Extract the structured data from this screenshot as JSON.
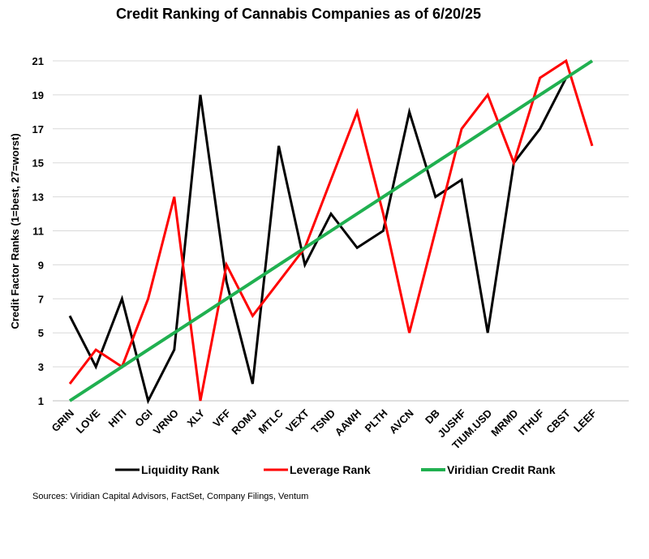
{
  "chart_data": {
    "type": "line",
    "title": "Credit Ranking of Cannabis Companies as of 6/20/25",
    "ylabel": "Credit Factor Ranks (1=best, 27=worst)",
    "xlabel": "",
    "ylim": [
      1,
      21
    ],
    "yticks": [
      1,
      3,
      5,
      7,
      9,
      11,
      13,
      15,
      17,
      19,
      21
    ],
    "grid": "horizontal",
    "legend_position": "bottom",
    "categories": [
      "GRIN",
      "LOVE",
      "HITI",
      "OGI",
      "VRNO",
      "XLY",
      "VFF",
      "ROMJ",
      "MTLC",
      "VEXT",
      "TSND",
      "AAWH",
      "PLTH",
      "AVCN",
      "DB",
      "JUSHF",
      "TIUM.USD",
      "MRMD",
      "ITHUF",
      "CBST",
      "LEEF"
    ],
    "series": [
      {
        "name": "Liquidity Rank",
        "color": "#000000",
        "values": [
          6,
          3,
          7,
          1,
          4,
          19,
          8,
          2,
          16,
          9,
          12,
          10,
          11,
          18,
          13,
          14,
          5,
          15,
          17,
          20,
          null
        ]
      },
      {
        "name": "Leverage Rank",
        "color": "#ff0000",
        "values": [
          2,
          4,
          3,
          7,
          13,
          1,
          9,
          6,
          8,
          10,
          14,
          18,
          12,
          5,
          11,
          17,
          19,
          15,
          20,
          21,
          16
        ]
      },
      {
        "name": "Viridian Credit Rank",
        "color": "#20b050",
        "values": [
          1,
          2,
          3,
          4,
          5,
          6,
          7,
          8,
          9,
          10,
          11,
          12,
          13,
          14,
          15,
          16,
          17,
          18,
          19,
          20,
          21
        ]
      }
    ]
  },
  "footer": {
    "source": "Sources: Viridian Capital Advisors, FactSet, Company Filings, Ventum"
  }
}
